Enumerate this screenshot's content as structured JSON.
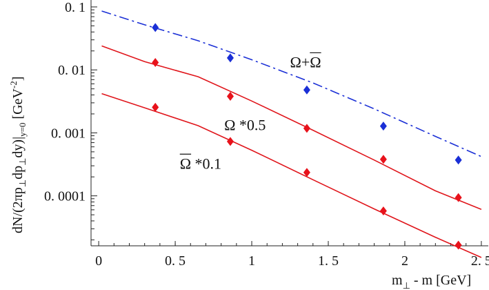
{
  "chart_data": {
    "type": "line",
    "title": "",
    "xlabel": "m⊥ - m [GeV]",
    "xlabel_parts": {
      "prefix": "m",
      "sub": "⊥",
      "suffix": " - m [GeV]"
    },
    "ylabel": "dN/(2πp⊥dp⊥dy)|y=0   [GeV⁻²]",
    "ylabel_parts": {
      "p1": "dN/(2πp",
      "s1": "⊥",
      "p2": "dp",
      "s2": "⊥",
      "p3": "dy)|",
      "s3": "y=0",
      "p4": "   [GeV",
      "sup": "-2",
      "p5": "]"
    },
    "xlim": [
      -0.05,
      2.55
    ],
    "ylim": [
      1.25e-05,
      0.1
    ],
    "yscale": "log",
    "grid": false,
    "x_ticks": [
      {
        "value": 0,
        "label": "0"
      },
      {
        "value": 0.5,
        "label": "0. 5"
      },
      {
        "value": 1.0,
        "label": "1"
      },
      {
        "value": 1.5,
        "label": "1. 5"
      },
      {
        "value": 2.0,
        "label": "2"
      },
      {
        "value": 2.5,
        "label": "2. 5"
      }
    ],
    "y_ticks": [
      {
        "value": 0.1,
        "label": "0. 1"
      },
      {
        "value": 0.01,
        "label": "0. 01"
      },
      {
        "value": 0.001,
        "label": "0. 001"
      },
      {
        "value": 0.0001,
        "label": "0. 0001"
      }
    ],
    "series": [
      {
        "label": {
          "text": "Ω+Ω",
          "over_parts": [
            false,
            false,
            true
          ]
        },
        "label_at": {
          "x": 1.25,
          "y": 0.011
        },
        "color": "#1a2fd6",
        "line_style": "dashdot",
        "marker_color": "#1a2fd6",
        "curve": {
          "x": [
            0.02,
            0.3,
            0.65,
            1.0,
            1.4,
            1.8,
            2.2,
            2.5
          ],
          "y": [
            0.086,
            0.052,
            0.029,
            0.0145,
            0.0062,
            0.0024,
            0.00088,
            0.00042
          ]
        },
        "points": {
          "x": [
            0.37,
            0.86,
            1.36,
            1.86,
            2.35
          ],
          "y": [
            0.047,
            0.0155,
            0.0048,
            0.00128,
            0.00037
          ]
        }
      },
      {
        "label": {
          "text": "Ω *0.5",
          "over_parts": [
            false
          ]
        },
        "label_at": {
          "x": 0.82,
          "y": 0.0011
        },
        "color": "#e0151b",
        "line_style": "solid",
        "marker_color": "#e8121b",
        "curve": {
          "x": [
            0.02,
            0.3,
            0.65,
            1.0,
            1.4,
            1.8,
            2.2,
            2.5
          ],
          "y": [
            0.024,
            0.0135,
            0.0078,
            0.0032,
            0.0011,
            0.00037,
            0.00012,
            6.1e-05
          ]
        },
        "points": {
          "x": [
            0.37,
            0.86,
            1.36,
            1.86,
            2.35
          ],
          "y": [
            0.0131,
            0.0038,
            0.00118,
            0.00038,
            9.4e-05
          ]
        }
      },
      {
        "label": {
          "text": "Ω *0.1",
          "over_parts": [
            true
          ]
        },
        "label_at": {
          "x": 0.53,
          "y": 0.00027
        },
        "color": "#e0151b",
        "line_style": "solid",
        "marker_color": "#e8121b",
        "curve": {
          "x": [
            0.02,
            0.3,
            0.65,
            1.0,
            1.4,
            1.8,
            2.2,
            2.5
          ],
          "y": [
            0.0042,
            0.0025,
            0.0013,
            0.00053,
            0.00018,
            6.2e-05,
            2.2e-05,
            1.05e-05
          ]
        },
        "points": {
          "x": [
            0.37,
            0.86,
            1.36,
            1.86,
            2.35
          ],
          "y": [
            0.00255,
            0.00073,
            0.000235,
            5.75e-05,
            1.65e-05
          ]
        }
      }
    ]
  }
}
